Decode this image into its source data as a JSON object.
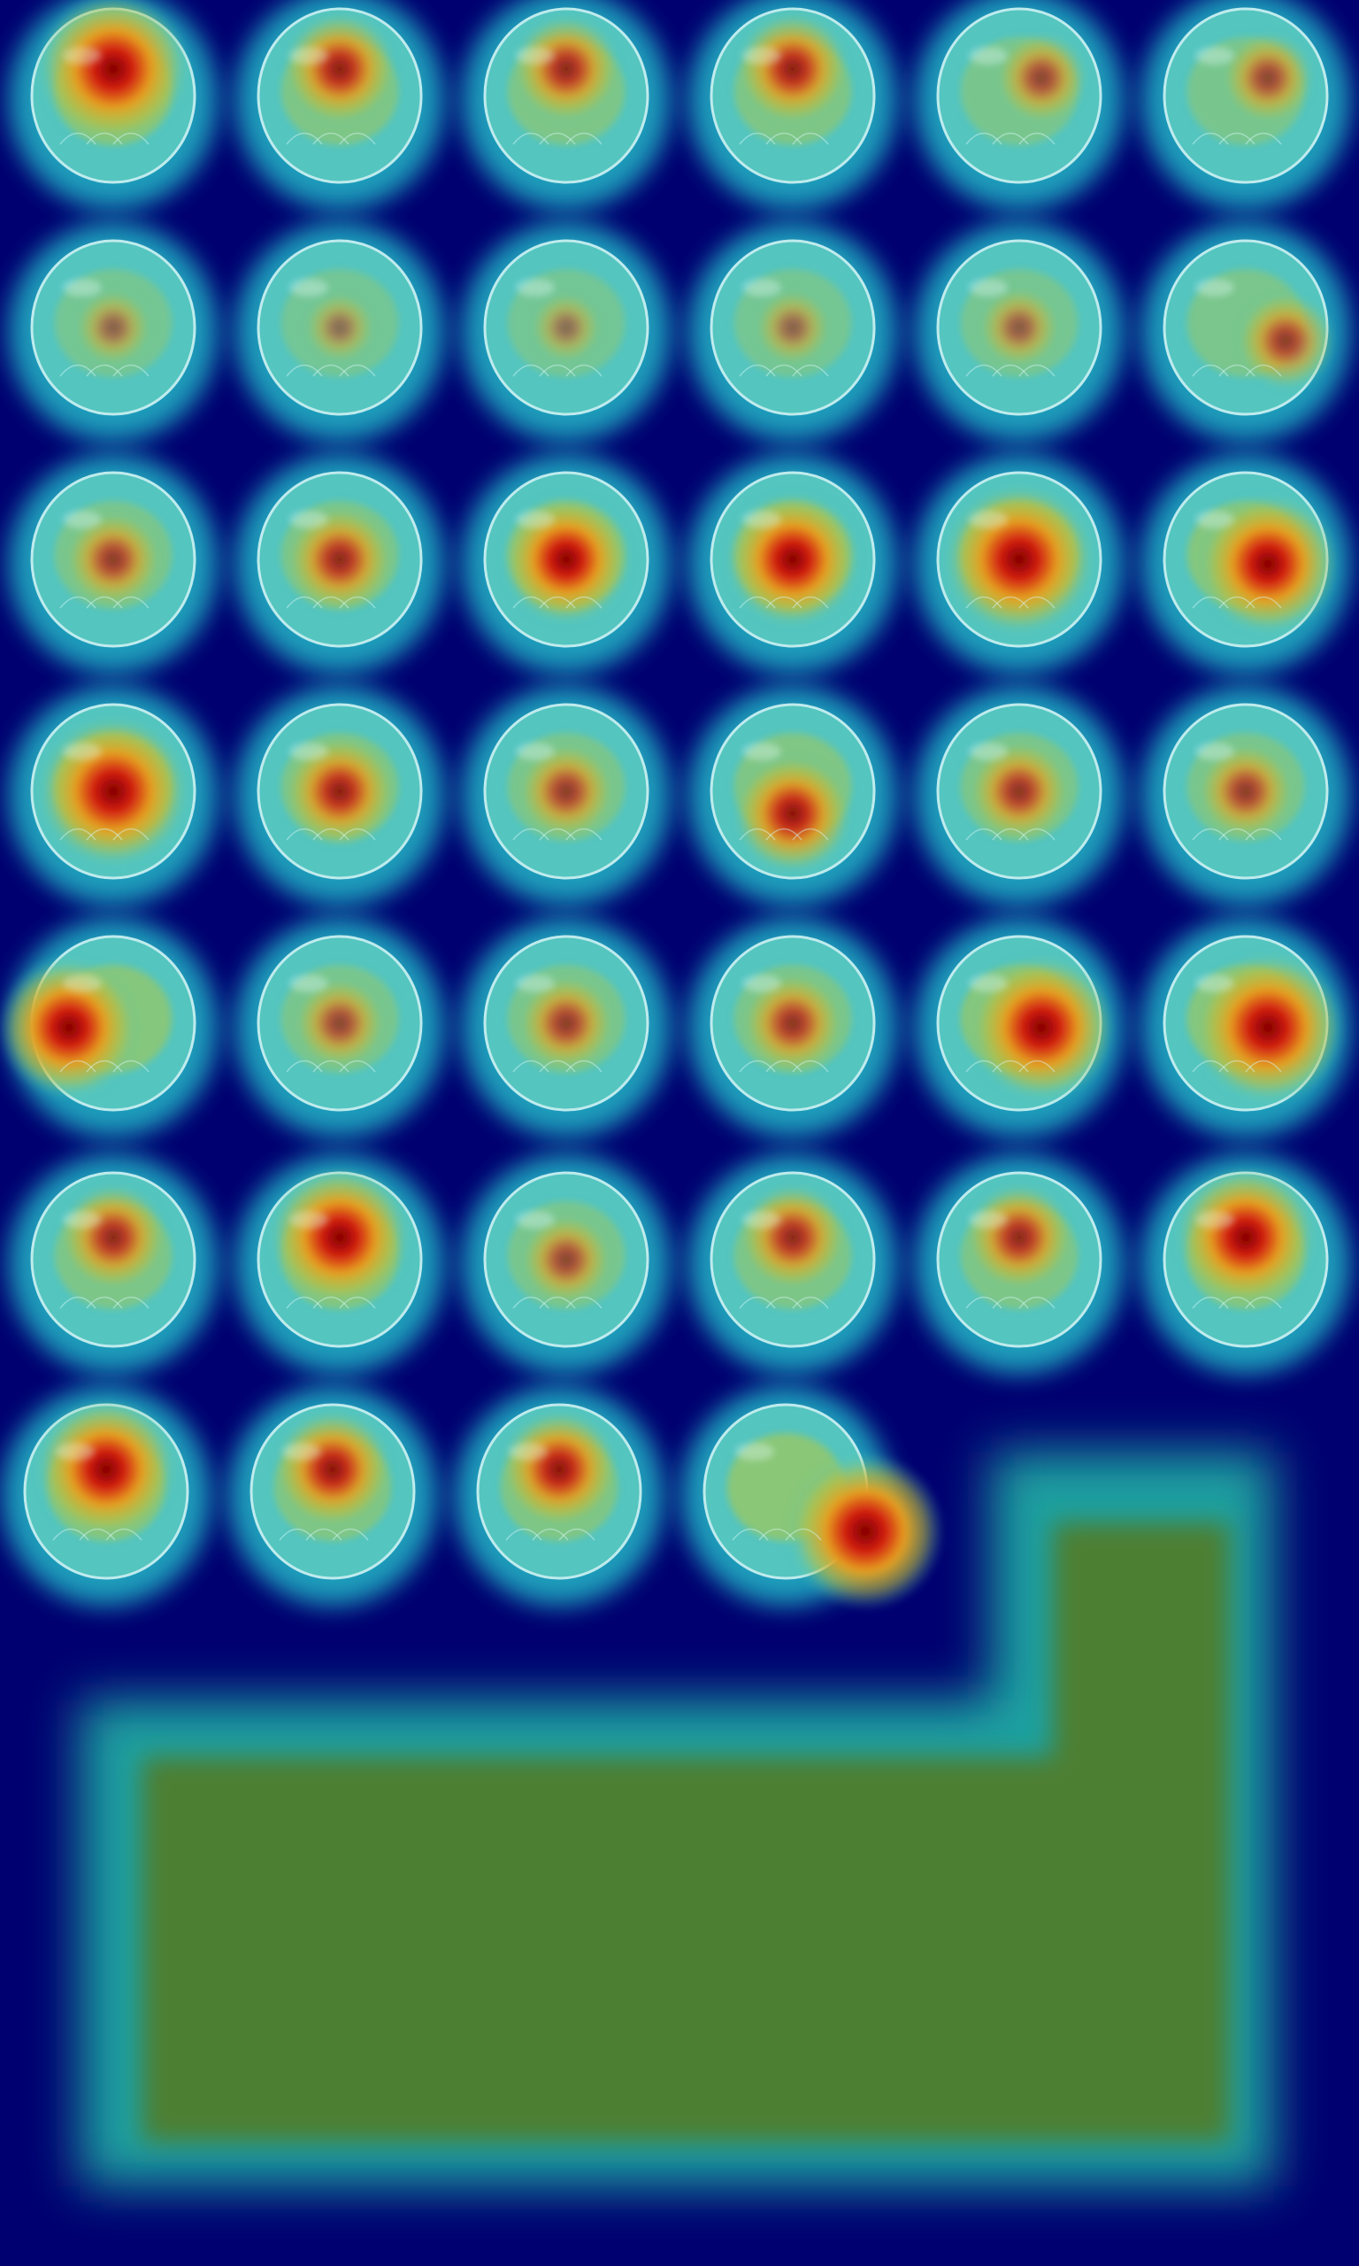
{
  "figure": {
    "type": "mri-slice-montage-with-saliency-heatmap",
    "grid": {
      "columns": 6,
      "rows": 7
    },
    "slice_count": 40,
    "colormap": "jet",
    "background_color": "#000070",
    "fill_region_color": "#4e7f30",
    "slices": [
      {
        "index": 1,
        "activation": 0.95,
        "focus": "anterior-center"
      },
      {
        "index": 2,
        "activation": 0.6,
        "focus": "anterior-center"
      },
      {
        "index": 3,
        "activation": 0.55,
        "focus": "anterior-center"
      },
      {
        "index": 4,
        "activation": 0.6,
        "focus": "anterior-center"
      },
      {
        "index": 5,
        "activation": 0.4,
        "focus": "anterior-right"
      },
      {
        "index": 6,
        "activation": 0.4,
        "focus": "anterior-right"
      },
      {
        "index": 7,
        "activation": 0.25,
        "focus": "center"
      },
      {
        "index": 8,
        "activation": 0.2,
        "focus": "center"
      },
      {
        "index": 9,
        "activation": 0.2,
        "focus": "center"
      },
      {
        "index": 10,
        "activation": 0.25,
        "focus": "center"
      },
      {
        "index": 11,
        "activation": 0.3,
        "focus": "center"
      },
      {
        "index": 12,
        "activation": 0.45,
        "focus": "right"
      },
      {
        "index": 13,
        "activation": 0.45,
        "focus": "center"
      },
      {
        "index": 14,
        "activation": 0.55,
        "focus": "center"
      },
      {
        "index": 15,
        "activation": 0.75,
        "focus": "center"
      },
      {
        "index": 16,
        "activation": 0.8,
        "focus": "center"
      },
      {
        "index": 17,
        "activation": 0.95,
        "focus": "center"
      },
      {
        "index": 18,
        "activation": 0.85,
        "focus": "center-right"
      },
      {
        "index": 19,
        "activation": 0.95,
        "focus": "center"
      },
      {
        "index": 20,
        "activation": 0.6,
        "focus": "center"
      },
      {
        "index": 21,
        "activation": 0.45,
        "focus": "center"
      },
      {
        "index": 22,
        "activation": 0.65,
        "focus": "lower-center"
      },
      {
        "index": 23,
        "activation": 0.5,
        "focus": "center"
      },
      {
        "index": 24,
        "activation": 0.45,
        "focus": "center"
      },
      {
        "index": 25,
        "activation": 0.85,
        "focus": "left"
      },
      {
        "index": 26,
        "activation": 0.4,
        "focus": "center"
      },
      {
        "index": 27,
        "activation": 0.45,
        "focus": "center"
      },
      {
        "index": 28,
        "activation": 0.5,
        "focus": "center"
      },
      {
        "index": 29,
        "activation": 0.9,
        "focus": "center-right"
      },
      {
        "index": 30,
        "activation": 0.95,
        "focus": "center-right"
      },
      {
        "index": 31,
        "activation": 0.55,
        "focus": "upper-center"
      },
      {
        "index": 32,
        "activation": 0.85,
        "focus": "upper-center"
      },
      {
        "index": 33,
        "activation": 0.4,
        "focus": "center"
      },
      {
        "index": 34,
        "activation": 0.55,
        "focus": "upper-center"
      },
      {
        "index": 35,
        "activation": 0.55,
        "focus": "upper-center"
      },
      {
        "index": 36,
        "activation": 0.85,
        "focus": "upper-center"
      },
      {
        "index": 37,
        "activation": 0.85,
        "focus": "upper-center"
      },
      {
        "index": 38,
        "activation": 0.65,
        "focus": "upper-center"
      },
      {
        "index": 39,
        "activation": 0.65,
        "focus": "upper-center"
      },
      {
        "index": 40,
        "activation": 1.0,
        "focus": "lower-right-edge"
      }
    ]
  }
}
